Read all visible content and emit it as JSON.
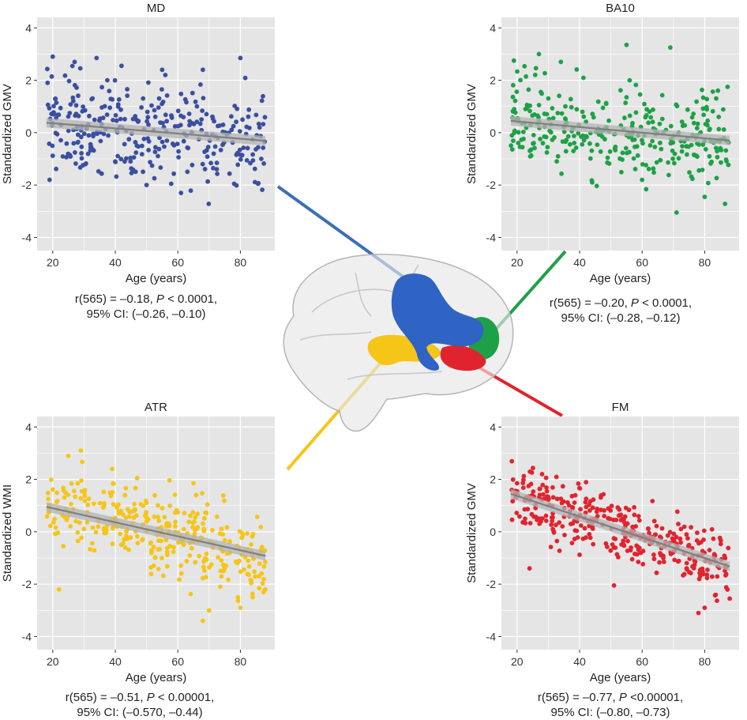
{
  "colors": {
    "panel_bg": "#e5e5e5",
    "grid": "#ffffff",
    "fit_line": "#7f7f7f",
    "ci_band": "#b3b3b3",
    "md": "#3a4fa0",
    "ba10": "#1ea146",
    "atr": "#f5c518",
    "fm": "#e0242f"
  },
  "brain": {
    "regions": [
      "md-region",
      "ba10-region",
      "atr-region",
      "fm-region"
    ]
  },
  "chart_data": [
    {
      "id": "md",
      "type": "scatter",
      "title": "MD",
      "xlabel": "Age (years)",
      "ylabel": "Standardized GMV",
      "xlim": [
        15,
        91
      ],
      "ylim": [
        -4.5,
        4.4
      ],
      "xticks": [
        20,
        40,
        60,
        80
      ],
      "yticks": [
        4,
        2,
        0,
        -2,
        -4
      ],
      "grid": true,
      "color": "#3a4fa0",
      "fit": {
        "x": [
          18,
          88
        ],
        "y": [
          0.38,
          -0.31
        ]
      },
      "n_points": 330,
      "seed": 11,
      "model": {
        "intercept": 0.56,
        "slope": -0.01,
        "sd": 0.95
      },
      "points": [
        [
          20,
          2.9
        ],
        [
          27,
          2.7
        ],
        [
          34,
          2.85
        ],
        [
          42,
          2.55
        ],
        [
          55,
          2.4
        ],
        [
          56,
          2.2
        ],
        [
          68,
          2.4
        ],
        [
          80,
          2.85
        ],
        [
          19,
          -1.8
        ],
        [
          61,
          -2.3
        ],
        [
          50,
          -2.0
        ],
        [
          78,
          -1.95
        ]
      ],
      "stats": {
        "line1_a": "r(565) = –0.18, ",
        "line1_p": "P",
        "line1_b": " < 0.0001,",
        "line2": "95% CI: (–0.26, –0.10)"
      }
    },
    {
      "id": "ba10",
      "type": "scatter",
      "title": "BA10",
      "xlabel": "Age (years)",
      "ylabel": "Standardized GMV",
      "xlim": [
        15,
        91
      ],
      "ylim": [
        -4.5,
        4.4
      ],
      "xticks": [
        20,
        40,
        60,
        80
      ],
      "yticks": [
        4,
        2,
        0,
        -2,
        -4
      ],
      "grid": true,
      "color": "#1ea146",
      "fit": {
        "x": [
          18,
          88
        ],
        "y": [
          0.45,
          -0.3
        ]
      },
      "n_points": 330,
      "seed": 23,
      "model": {
        "intercept": 0.64,
        "slope": -0.0107,
        "sd": 0.9
      },
      "points": [
        [
          27,
          3.0
        ],
        [
          55,
          3.35
        ],
        [
          69,
          3.25
        ],
        [
          19,
          2.75
        ],
        [
          34,
          2.7
        ],
        [
          71,
          -3.05
        ],
        [
          80,
          -2.45
        ],
        [
          44,
          -1.9
        ],
        [
          56,
          2.0
        ]
      ],
      "stats": {
        "line1_a": "r(565) = –0.20, ",
        "line1_p": "P",
        "line1_b": " < 0.0001,",
        "line2": "95% CI: (–0.28, –0.12)"
      }
    },
    {
      "id": "atr",
      "type": "scatter",
      "title": "ATR",
      "xlabel": "Age (years)",
      "ylabel": "Standardized WMI",
      "xlim": [
        15,
        91
      ],
      "ylim": [
        -4.5,
        4.4
      ],
      "xticks": [
        20,
        40,
        60,
        80
      ],
      "yticks": [
        4,
        2,
        0,
        -2,
        -4
      ],
      "grid": true,
      "color": "#f5c518",
      "fit": {
        "x": [
          18,
          88
        ],
        "y": [
          0.95,
          -0.92
        ]
      },
      "n_points": 340,
      "seed": 37,
      "model": {
        "intercept": 1.43,
        "slope": -0.0267,
        "sd": 0.78
      },
      "points": [
        [
          25,
          2.9
        ],
        [
          29,
          3.1
        ],
        [
          39,
          2.4
        ],
        [
          47,
          2.05
        ],
        [
          65,
          1.85
        ],
        [
          22,
          -2.2
        ],
        [
          68,
          -3.4
        ],
        [
          70,
          -3.0
        ],
        [
          80,
          -2.9
        ],
        [
          88,
          -2.2
        ]
      ],
      "stats": {
        "line1_a": "r(565) = –0.51, ",
        "line1_p": "P",
        "line1_b": " < 0.00001,",
        "line2": "95% CI: (–0.570, –0.44)"
      }
    },
    {
      "id": "fm",
      "type": "scatter",
      "title": "FM",
      "xlabel": "Age (years)",
      "ylabel": "Standardized GMV",
      "xlim": [
        15,
        91
      ],
      "ylim": [
        -4.5,
        4.4
      ],
      "xticks": [
        20,
        40,
        60,
        80
      ],
      "yticks": [
        4,
        2,
        0,
        -2,
        -4
      ],
      "grid": true,
      "color": "#e0242f",
      "fit": {
        "x": [
          18,
          88
        ],
        "y": [
          1.45,
          -1.32
        ]
      },
      "n_points": 360,
      "seed": 53,
      "model": {
        "intercept": 2.16,
        "slope": -0.0396,
        "sd": 0.6
      },
      "points": [
        [
          28,
          2.2
        ],
        [
          20,
          1.85
        ],
        [
          24,
          -1.4
        ],
        [
          51,
          -2.05
        ],
        [
          78,
          -3.1
        ],
        [
          80,
          -2.9
        ],
        [
          88,
          -2.55
        ]
      ],
      "stats": {
        "line1_a": "r(565) = –0.77, ",
        "line1_p": "P",
        "line1_b": " <0.00001,",
        "line2": "95% CI: (–0.80, –0.73)"
      }
    }
  ]
}
